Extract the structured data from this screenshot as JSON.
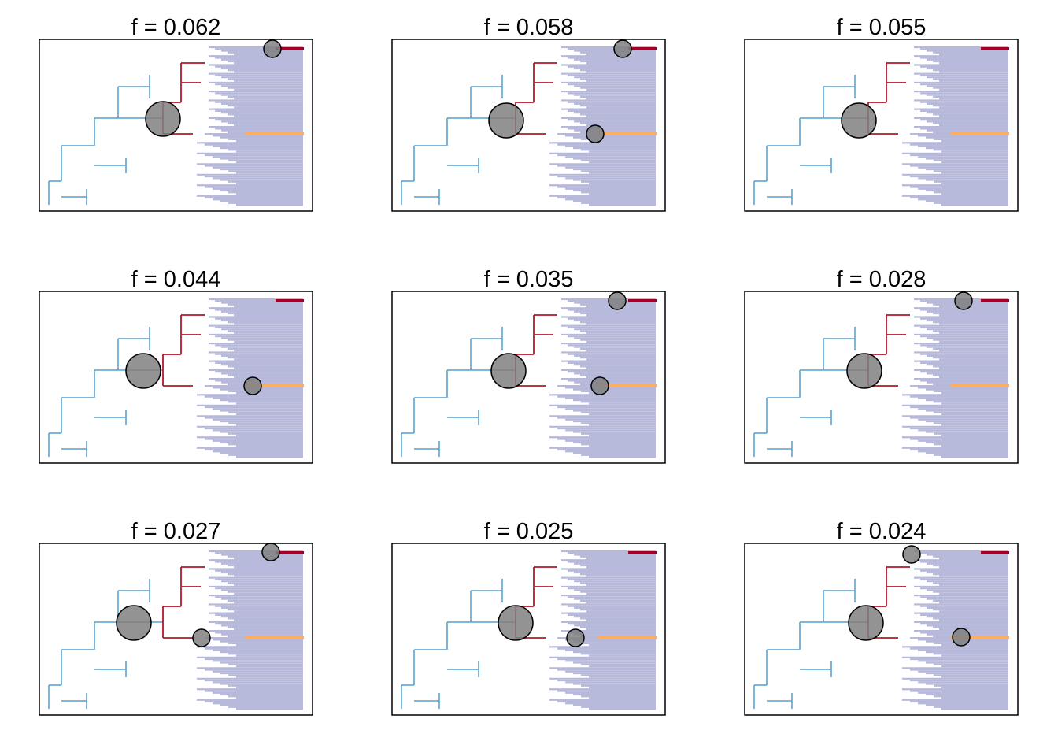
{
  "chart_data": [
    {
      "type": "phylogeny",
      "title": "f = 0.062",
      "shift_markers": [
        {
          "size": "large",
          "clade": "central-upper"
        },
        {
          "size": "small",
          "clade": "top-tip"
        }
      ]
    },
    {
      "type": "phylogeny",
      "title": "f = 0.058",
      "shift_markers": [
        {
          "size": "large",
          "clade": "central-upper"
        },
        {
          "size": "small",
          "clade": "top-tip"
        },
        {
          "size": "small",
          "clade": "mid-tip"
        }
      ]
    },
    {
      "type": "phylogeny",
      "title": "f = 0.055",
      "shift_markers": [
        {
          "size": "large",
          "clade": "central-upper"
        }
      ]
    },
    {
      "type": "phylogeny",
      "title": "f = 0.044",
      "shift_markers": [
        {
          "size": "large",
          "clade": "central-upper"
        },
        {
          "size": "small",
          "clade": "mid-tip"
        }
      ]
    },
    {
      "type": "phylogeny",
      "title": "f = 0.035",
      "shift_markers": [
        {
          "size": "large",
          "clade": "central-upper"
        },
        {
          "size": "small",
          "clade": "top-tip"
        },
        {
          "size": "small",
          "clade": "mid-tip"
        }
      ]
    },
    {
      "type": "phylogeny",
      "title": "f = 0.028",
      "shift_markers": [
        {
          "size": "large",
          "clade": "central-upper"
        },
        {
          "size": "small",
          "clade": "top-tip"
        }
      ]
    },
    {
      "type": "phylogeny",
      "title": "f = 0.027",
      "shift_markers": [
        {
          "size": "large",
          "clade": "central-upper"
        },
        {
          "size": "small",
          "clade": "top-tip"
        },
        {
          "size": "small",
          "clade": "mid-tip"
        }
      ]
    },
    {
      "type": "phylogeny",
      "title": "f = 0.025",
      "shift_markers": [
        {
          "size": "large",
          "clade": "central-upper"
        },
        {
          "size": "small",
          "clade": "mid-tip"
        }
      ]
    },
    {
      "type": "phylogeny",
      "title": "f = 0.024",
      "shift_markers": [
        {
          "size": "large",
          "clade": "central-upper"
        },
        {
          "size": "small",
          "clade": "top-tip"
        },
        {
          "size": "small",
          "clade": "mid-tip"
        }
      ]
    }
  ],
  "colors": {
    "background_rate_low": "#d1e5f0",
    "background_rate_mid": "#4575b4",
    "background_rate_high": "#313695",
    "shift_rate_low": "#a50026",
    "shift_rate_mid": "#fdae61",
    "shift_rate_peak": "#ffffbf",
    "marker_fill": "#808080",
    "frame": "#000000"
  }
}
